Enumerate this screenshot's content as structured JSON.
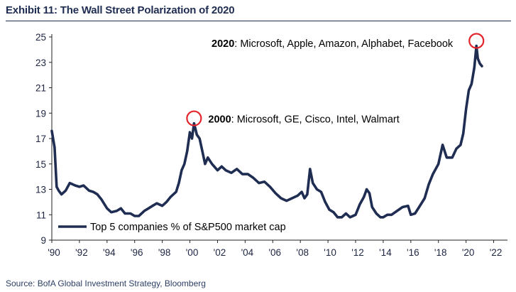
{
  "header": {
    "title": "Exhibit 11: The Wall Street Polarization of 2020"
  },
  "footer": {
    "source": "Source: BofA Global Investment Strategy, Bloomberg"
  },
  "chart_data": {
    "type": "line",
    "title": "Exhibit 11: The Wall Street Polarization of 2020",
    "xlabel": "",
    "ylabel": "",
    "xlim": [
      1990,
      2023
    ],
    "ylim": [
      9,
      25
    ],
    "yticks": [
      9,
      11,
      13,
      15,
      17,
      19,
      21,
      23,
      25
    ],
    "xticks": [
      1990,
      1992,
      1994,
      1996,
      1998,
      2000,
      2002,
      2004,
      2006,
      2008,
      2010,
      2012,
      2014,
      2016,
      2018,
      2020,
      2022
    ],
    "xtick_labels": [
      "'90",
      "'92",
      "'94",
      "'96",
      "'98",
      "'00",
      "'02",
      "'04",
      "'06",
      "'08",
      "'10",
      "'12",
      "'14",
      "'16",
      "'18",
      "'20",
      "'22"
    ],
    "grid": false,
    "legend_position": "bottom-left",
    "series_color": "#1f2d52",
    "highlight_color": "#e3242b",
    "series": [
      {
        "name": "Top 5 companies % of S&P500 market cap",
        "points": [
          [
            1990.0,
            17.6
          ],
          [
            1990.2,
            16.3
          ],
          [
            1990.35,
            13.2
          ],
          [
            1990.5,
            12.9
          ],
          [
            1990.7,
            12.6
          ],
          [
            1991.0,
            12.9
          ],
          [
            1991.3,
            13.5
          ],
          [
            1991.7,
            13.3
          ],
          [
            1992.0,
            13.2
          ],
          [
            1992.3,
            13.3
          ],
          [
            1992.7,
            12.9
          ],
          [
            1993.0,
            12.8
          ],
          [
            1993.3,
            12.6
          ],
          [
            1993.6,
            12.2
          ],
          [
            1994.0,
            11.5
          ],
          [
            1994.3,
            11.2
          ],
          [
            1994.7,
            11.3
          ],
          [
            1995.0,
            11.5
          ],
          [
            1995.3,
            11.1
          ],
          [
            1995.7,
            11.1
          ],
          [
            1996.0,
            10.9
          ],
          [
            1996.3,
            10.9
          ],
          [
            1996.7,
            11.3
          ],
          [
            1997.0,
            11.5
          ],
          [
            1997.3,
            11.7
          ],
          [
            1997.6,
            11.9
          ],
          [
            1998.0,
            11.7
          ],
          [
            1998.3,
            12.0
          ],
          [
            1998.6,
            12.4
          ],
          [
            1999.0,
            12.8
          ],
          [
            1999.2,
            13.5
          ],
          [
            1999.4,
            14.5
          ],
          [
            1999.6,
            15.0
          ],
          [
            1999.8,
            16.0
          ],
          [
            2000.0,
            17.5
          ],
          [
            2000.15,
            17.0
          ],
          [
            2000.3,
            18.2
          ],
          [
            2000.5,
            17.3
          ],
          [
            2000.7,
            17.0
          ],
          [
            2000.9,
            16.0
          ],
          [
            2001.1,
            15.0
          ],
          [
            2001.3,
            15.5
          ],
          [
            2001.6,
            15.0
          ],
          [
            2002.0,
            14.5
          ],
          [
            2002.3,
            14.8
          ],
          [
            2002.6,
            14.5
          ],
          [
            2003.0,
            14.3
          ],
          [
            2003.4,
            14.6
          ],
          [
            2003.8,
            14.2
          ],
          [
            2004.2,
            14.2
          ],
          [
            2004.6,
            13.9
          ],
          [
            2005.0,
            13.5
          ],
          [
            2005.4,
            13.6
          ],
          [
            2005.8,
            13.2
          ],
          [
            2006.2,
            12.7
          ],
          [
            2006.6,
            12.3
          ],
          [
            2007.0,
            12.1
          ],
          [
            2007.4,
            12.3
          ],
          [
            2007.8,
            12.5
          ],
          [
            2008.1,
            12.8
          ],
          [
            2008.3,
            12.3
          ],
          [
            2008.5,
            12.6
          ],
          [
            2008.7,
            14.6
          ],
          [
            2008.9,
            13.5
          ],
          [
            2009.2,
            13.0
          ],
          [
            2009.5,
            12.8
          ],
          [
            2009.8,
            12.0
          ],
          [
            2010.1,
            11.4
          ],
          [
            2010.4,
            11.2
          ],
          [
            2010.7,
            10.8
          ],
          [
            2011.0,
            10.8
          ],
          [
            2011.3,
            11.1
          ],
          [
            2011.6,
            10.8
          ],
          [
            2012.0,
            11.0
          ],
          [
            2012.3,
            11.8
          ],
          [
            2012.6,
            12.4
          ],
          [
            2012.8,
            13.0
          ],
          [
            2013.0,
            12.7
          ],
          [
            2013.2,
            11.6
          ],
          [
            2013.5,
            11.1
          ],
          [
            2013.8,
            10.8
          ],
          [
            2014.0,
            10.8
          ],
          [
            2014.3,
            11.0
          ],
          [
            2014.6,
            11.0
          ],
          [
            2015.0,
            11.3
          ],
          [
            2015.4,
            11.6
          ],
          [
            2015.8,
            11.7
          ],
          [
            2016.0,
            11.0
          ],
          [
            2016.3,
            11.1
          ],
          [
            2016.6,
            11.6
          ],
          [
            2017.0,
            12.3
          ],
          [
            2017.3,
            13.4
          ],
          [
            2017.6,
            14.2
          ],
          [
            2018.0,
            15.0
          ],
          [
            2018.3,
            16.5
          ],
          [
            2018.6,
            15.5
          ],
          [
            2019.0,
            15.5
          ],
          [
            2019.3,
            16.2
          ],
          [
            2019.6,
            16.5
          ],
          [
            2019.8,
            17.4
          ],
          [
            2020.0,
            19.3
          ],
          [
            2020.2,
            20.8
          ],
          [
            2020.4,
            21.3
          ],
          [
            2020.6,
            22.6
          ],
          [
            2020.75,
            24.3
          ],
          [
            2020.85,
            23.3
          ],
          [
            2021.0,
            22.9
          ],
          [
            2021.15,
            22.7
          ]
        ]
      }
    ],
    "annotations": [
      {
        "year_text": "2000",
        "rest_text": ": Microsoft, GE, Cisco, Intel, Walmart",
        "point": [
          2000.3,
          18.2
        ]
      },
      {
        "year_text": "2020",
        "rest_text": ": Microsoft, Apple, Amazon, Alphabet, Facebook",
        "point": [
          2020.75,
          24.3
        ]
      }
    ]
  }
}
